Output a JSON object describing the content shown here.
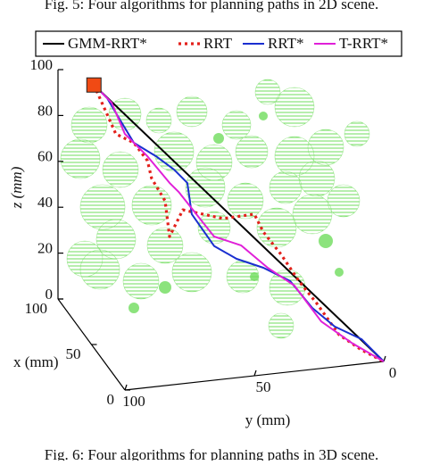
{
  "chart_data": {
    "type": "line3d",
    "caption_top": "Fig. 5: Four algorithms for planning paths in 2D scene.",
    "caption_bottom": "Fig. 6: Four algorithms for planning paths in 3D scene.",
    "xlabel": "x (mm)",
    "ylabel": "y (mm)",
    "zlabel": "z (mm)",
    "xlim": [
      0,
      100
    ],
    "ylim": [
      0,
      100
    ],
    "zlim": [
      0,
      100
    ],
    "xticks": [
      0,
      50,
      100
    ],
    "yticks": [
      0,
      50,
      100
    ],
    "zticks": [
      0,
      20,
      40,
      60,
      80,
      100
    ],
    "legend": "top",
    "start_marker_color": "#f04a14",
    "obstacle_color": "#6fdc5c",
    "series": [
      {
        "name": "GMM-RRT*",
        "color": "#000000",
        "linestyle": "solid",
        "x": [
          85,
          0
        ],
        "y": [
          90,
          0
        ],
        "z": [
          98,
          0
        ]
      },
      {
        "name": "RRT",
        "color": "#e3201b",
        "linestyle": "dotted",
        "x": [
          85,
          78.5,
          73.3,
          69.3,
          68.0,
          64.1,
          62.8,
          58.9,
          47.1,
          37.9,
          35.3,
          30.1,
          24.8,
          19.6,
          13.1,
          6.5,
          0
        ],
        "y": [
          90,
          83.2,
          77.6,
          73.4,
          72.1,
          67.9,
          66.5,
          62.4,
          49.9,
          40.2,
          37.4,
          31.9,
          26.3,
          20.8,
          13.9,
          6.9,
          0
        ],
        "z": [
          98,
          78.4,
          75.9,
          69.2,
          61.8,
          53.0,
          37.8,
          50.5,
          49.8,
          54.2,
          47.1,
          38.7,
          28.4,
          20.1,
          8.2,
          3.3,
          0
        ]
      },
      {
        "name": "RRT*",
        "color": "#1a2fd0",
        "linestyle": "solid",
        "x": [
          85,
          81.1,
          77.2,
          73.3,
          66.7,
          61.5,
          57.6,
          56.3,
          49.7,
          43.2,
          35.3,
          27.5,
          20.9,
          14.4,
          6.5,
          0
        ],
        "y": [
          90,
          85.9,
          81.8,
          77.6,
          70.7,
          65.1,
          61.0,
          59.6,
          52.7,
          45.7,
          37.4,
          29.1,
          22.2,
          15.2,
          6.9,
          0
        ],
        "z": [
          98,
          93.3,
          84.6,
          75.9,
          71.8,
          67.3,
          62.6,
          49.3,
          37.2,
          33.3,
          31.5,
          27.8,
          17.8,
          11.4,
          8.0,
          0
        ]
      },
      {
        "name": "T-RRT*",
        "color": "#e020d8",
        "linestyle": "solid",
        "x": [
          85,
          79.8,
          75.9,
          69.3,
          62.8,
          60.2,
          49.7,
          41.9,
          34.0,
          26.2,
          18.3,
          9.2,
          0
        ],
        "y": [
          90,
          84.5,
          80.4,
          73.4,
          66.5,
          63.7,
          52.7,
          44.3,
          36.0,
          27.7,
          19.4,
          9.7,
          0
        ],
        "z": [
          98,
          91.7,
          79.1,
          71.1,
          61.2,
          58.0,
          41.3,
          39.5,
          31.8,
          26.1,
          12.6,
          5.4,
          0
        ]
      }
    ]
  }
}
